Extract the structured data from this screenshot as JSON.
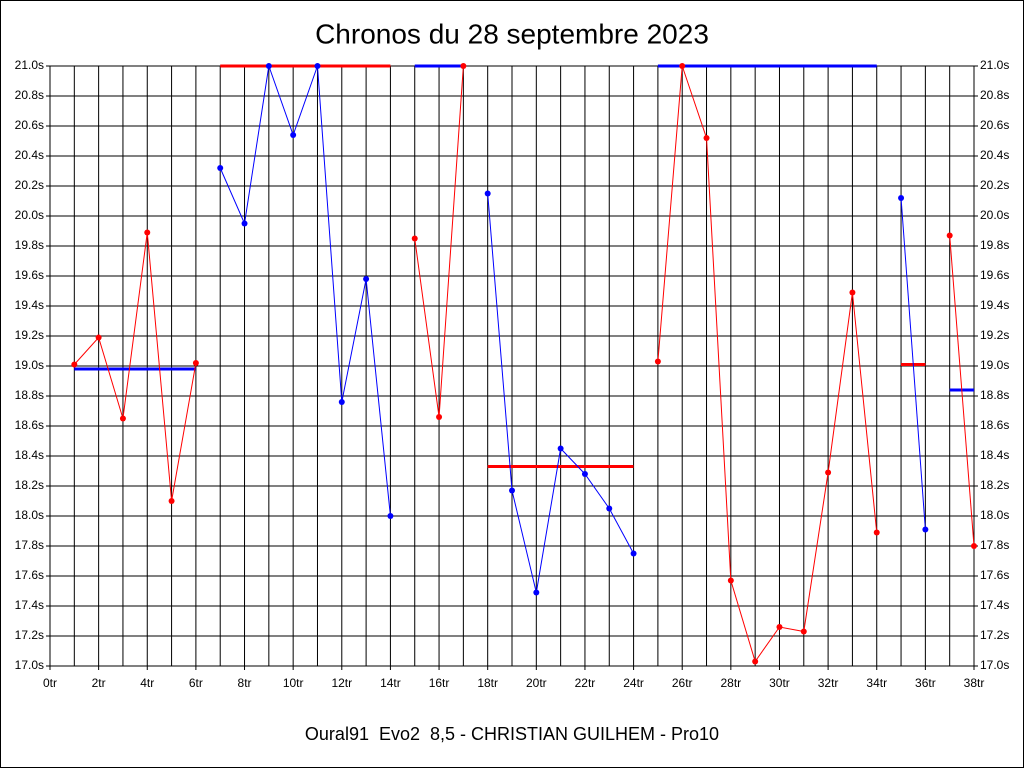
{
  "chart_data": {
    "type": "line",
    "title": "Chronos du 28 septembre 2023",
    "footer": "Oural91  Evo2  8,5 - CHRISTIAN GUILHEM - Pro10",
    "xlim": [
      0,
      38
    ],
    "ylim": [
      17.0,
      21.0
    ],
    "grid": true,
    "xticks": [
      {
        "value": 0,
        "label": "0tr"
      },
      {
        "value": 2,
        "label": "2tr"
      },
      {
        "value": 4,
        "label": "4tr"
      },
      {
        "value": 6,
        "label": "6tr"
      },
      {
        "value": 8,
        "label": "8tr"
      },
      {
        "value": 10,
        "label": "10tr"
      },
      {
        "value": 12,
        "label": "12tr"
      },
      {
        "value": 14,
        "label": "14tr"
      },
      {
        "value": 16,
        "label": "16tr"
      },
      {
        "value": 18,
        "label": "18tr"
      },
      {
        "value": 20,
        "label": "20tr"
      },
      {
        "value": 22,
        "label": "22tr"
      },
      {
        "value": 24,
        "label": "24tr"
      },
      {
        "value": 26,
        "label": "26tr"
      },
      {
        "value": 28,
        "label": "28tr"
      },
      {
        "value": 30,
        "label": "30tr"
      },
      {
        "value": 32,
        "label": "32tr"
      },
      {
        "value": 34,
        "label": "34tr"
      },
      {
        "value": 36,
        "label": "36tr"
      },
      {
        "value": 38,
        "label": "38tr"
      }
    ],
    "xgrid": [
      1,
      3,
      5,
      7,
      9,
      11,
      13,
      15,
      17,
      19,
      21,
      23,
      25,
      27,
      29,
      31,
      33,
      35,
      37
    ],
    "yticks": [
      {
        "value": 17.0,
        "label": "17.0s"
      },
      {
        "value": 17.2,
        "label": "17.2s"
      },
      {
        "value": 17.4,
        "label": "17.4s"
      },
      {
        "value": 17.6,
        "label": "17.6s"
      },
      {
        "value": 17.8,
        "label": "17.8s"
      },
      {
        "value": 18.0,
        "label": "18.0s"
      },
      {
        "value": 18.2,
        "label": "18.2s"
      },
      {
        "value": 18.4,
        "label": "18.4s"
      },
      {
        "value": 18.6,
        "label": "18.6s"
      },
      {
        "value": 18.8,
        "label": "18.8s"
      },
      {
        "value": 19.0,
        "label": "19.0s"
      },
      {
        "value": 19.2,
        "label": "19.2s"
      },
      {
        "value": 19.4,
        "label": "19.4s"
      },
      {
        "value": 19.6,
        "label": "19.6s"
      },
      {
        "value": 19.8,
        "label": "19.8s"
      },
      {
        "value": 20.0,
        "label": "20.0s"
      },
      {
        "value": 20.2,
        "label": "20.2s"
      },
      {
        "value": 20.4,
        "label": "20.4s"
      },
      {
        "value": 20.6,
        "label": "20.6s"
      },
      {
        "value": 20.8,
        "label": "20.8s"
      },
      {
        "value": 21.0,
        "label": "21.0s"
      }
    ],
    "series": [
      {
        "color": "#ff0000",
        "x": [
          1,
          2,
          3,
          4,
          5,
          6
        ],
        "values": [
          19.01,
          19.19,
          18.65,
          19.89,
          18.1,
          19.02
        ]
      },
      {
        "color": "#0000ff",
        "x": [
          7,
          8,
          9,
          10,
          11,
          12,
          13,
          14
        ],
        "values": [
          20.32,
          19.95,
          21.0,
          20.54,
          21.0,
          18.76,
          19.58,
          18.0
        ]
      },
      {
        "color": "#ff0000",
        "x": [
          15,
          16,
          17
        ],
        "values": [
          19.85,
          18.66,
          21.0
        ]
      },
      {
        "color": "#0000ff",
        "x": [
          18,
          19,
          20,
          21,
          22,
          23,
          24
        ],
        "values": [
          20.15,
          18.17,
          17.49,
          18.45,
          18.28,
          18.05,
          17.75
        ]
      },
      {
        "color": "#ff0000",
        "x": [
          25,
          26,
          27,
          28,
          29,
          30,
          31,
          32,
          33,
          34
        ],
        "values": [
          19.03,
          21.0,
          20.52,
          17.57,
          17.03,
          17.26,
          17.23,
          18.29,
          19.49,
          17.89
        ]
      },
      {
        "color": "#0000ff",
        "x": [
          35,
          36
        ],
        "values": [
          20.12,
          17.91
        ]
      },
      {
        "color": "#ff0000",
        "x": [
          37,
          38
        ],
        "values": [
          19.87,
          17.8
        ]
      }
    ],
    "avg_lines": [
      {
        "color": "#0000ff",
        "x": [
          1,
          6
        ],
        "value": 18.98
      },
      {
        "color": "#ff0000",
        "x": [
          7,
          14
        ],
        "value": 21.0
      },
      {
        "color": "#0000ff",
        "x": [
          15,
          17
        ],
        "value": 21.0
      },
      {
        "color": "#ff0000",
        "x": [
          18,
          24
        ],
        "value": 18.33
      },
      {
        "color": "#0000ff",
        "x": [
          25,
          34
        ],
        "value": 21.0
      },
      {
        "color": "#ff0000",
        "x": [
          35,
          36
        ],
        "value": 19.01
      },
      {
        "color": "#0000ff",
        "x": [
          37,
          38
        ],
        "value": 18.84
      }
    ]
  }
}
